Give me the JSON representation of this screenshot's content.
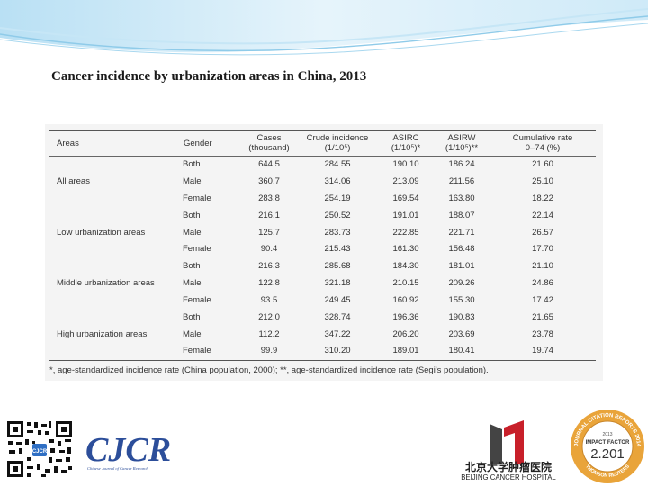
{
  "title": "Cancer incidence by urbanization areas in China, 2013",
  "table": {
    "headers": [
      {
        "line1": "Areas",
        "line2": ""
      },
      {
        "line1": "Gender",
        "line2": ""
      },
      {
        "line1": "Cases",
        "line2": "(thousand)"
      },
      {
        "line1": "Crude incidence",
        "line2": "(1/10⁵)"
      },
      {
        "line1": "ASIRC",
        "line2": "(1/10⁵)*"
      },
      {
        "line1": "ASIRW",
        "line2": "(1/10⁵)**"
      },
      {
        "line1": "Cumulative rate",
        "line2": "0–74 (%)"
      }
    ],
    "groups": [
      {
        "area": "All areas",
        "rows": [
          {
            "gender": "Both",
            "cases": "644.5",
            "crude": "284.55",
            "asirc": "190.10",
            "asirw": "186.24",
            "cumulative": "21.60"
          },
          {
            "gender": "Male",
            "cases": "360.7",
            "crude": "314.06",
            "asirc": "213.09",
            "asirw": "211.56",
            "cumulative": "25.10"
          },
          {
            "gender": "Female",
            "cases": "283.8",
            "crude": "254.19",
            "asirc": "169.54",
            "asirw": "163.80",
            "cumulative": "18.22"
          }
        ]
      },
      {
        "area": "Low urbanization areas",
        "rows": [
          {
            "gender": "Both",
            "cases": "216.1",
            "crude": "250.52",
            "asirc": "191.01",
            "asirw": "188.07",
            "cumulative": "22.14"
          },
          {
            "gender": "Male",
            "cases": "125.7",
            "crude": "283.73",
            "asirc": "222.85",
            "asirw": "221.71",
            "cumulative": "26.57"
          },
          {
            "gender": "Female",
            "cases": "90.4",
            "crude": "215.43",
            "asirc": "161.30",
            "asirw": "156.48",
            "cumulative": "17.70"
          }
        ]
      },
      {
        "area": "Middle urbanization areas",
        "rows": [
          {
            "gender": "Both",
            "cases": "216.3",
            "crude": "285.68",
            "asirc": "184.30",
            "asirw": "181.01",
            "cumulative": "21.10"
          },
          {
            "gender": "Male",
            "cases": "122.8",
            "crude": "321.18",
            "asirc": "210.15",
            "asirw": "209.26",
            "cumulative": "24.86"
          },
          {
            "gender": "Female",
            "cases": "93.5",
            "crude": "249.45",
            "asirc": "160.92",
            "asirw": "155.30",
            "cumulative": "17.42"
          }
        ]
      },
      {
        "area": "High urbanization areas",
        "rows": [
          {
            "gender": "Both",
            "cases": "212.0",
            "crude": "328.74",
            "asirc": "196.36",
            "asirw": "190.83",
            "cumulative": "21.65"
          },
          {
            "gender": "Male",
            "cases": "112.2",
            "crude": "347.22",
            "asirc": "206.20",
            "asirw": "203.69",
            "cumulative": "23.78"
          },
          {
            "gender": "Female",
            "cases": "99.9",
            "crude": "310.20",
            "asirc": "189.01",
            "asirw": "180.41",
            "cumulative": "19.74"
          }
        ]
      }
    ],
    "footnote": "*, age-standardized incidence rate (China population, 2000); **, age-standardized incidence rate (Segi's population)."
  },
  "logos": {
    "cjcr": {
      "name": "CJCR",
      "subtitle": "Chinese Journal of Cancer Research"
    },
    "hospital": {
      "name_cn": "北京大学肿瘤医院",
      "name_en": "BEIJING CANCER HOSPITAL"
    },
    "seal": {
      "ring_text": "JOURNAL CITATION REPORTS 2014",
      "year": "2013",
      "label": "IMPACT FACTOR",
      "value": "2.201",
      "source": "THOMSON REUTERS"
    }
  },
  "colors": {
    "banner_light": "#dff0fa",
    "banner_mid": "#9fd3ee",
    "cjcr_blue": "#2c4e9a",
    "hospital_red": "#c8202a",
    "seal_gold": "#e9a43a"
  }
}
